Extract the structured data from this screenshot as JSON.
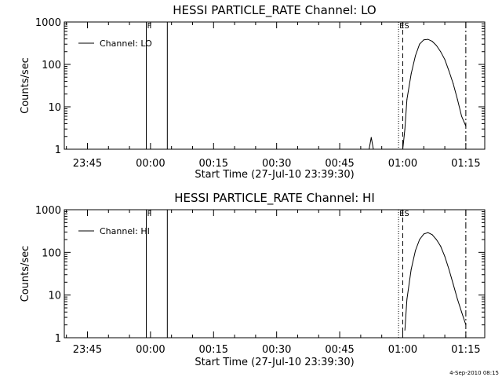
{
  "chart_data": [
    {
      "type": "line",
      "title": "HESSI PARTICLE_RATE Channel: LO",
      "xlabel": "Start Time (27-Jul-10 23:39:30)",
      "ylabel": "Counts/sec",
      "yscale": "log",
      "ylim": [
        1,
        1000
      ],
      "xlim_minutes_after_start": [
        0,
        100
      ],
      "x_tick_labels": [
        "23:45",
        "00:00",
        "00:15",
        "00:30",
        "00:45",
        "01:00",
        "01:15"
      ],
      "y_tick_labels": [
        "1",
        "10",
        "100",
        "1000"
      ],
      "legend": "top-left",
      "series": [
        {
          "name": "Channel: LO",
          "x": [
            "00:52",
            "00:52.5",
            "00:53",
            "01:00",
            "01:00.5",
            "01:01",
            "01:02",
            "01:03",
            "01:04",
            "01:05",
            "01:06",
            "01:07",
            "01:08",
            "01:09",
            "01:10",
            "01:11",
            "01:12",
            "01:13",
            "01:14",
            "01:15"
          ],
          "values": [
            1.0,
            1.9,
            1.0,
            1.0,
            3.0,
            15,
            60,
            160,
            300,
            380,
            390,
            350,
            280,
            200,
            130,
            70,
            35,
            15,
            6,
            3.5
          ]
        }
      ],
      "markers": [
        {
          "label": "F",
          "time": "23:59"
        },
        {
          "label": "",
          "time": "00:04"
        },
        {
          "label": "ES",
          "time": "00:59"
        },
        {
          "label": "",
          "time": "01:00"
        },
        {
          "label": "",
          "time": "01:15"
        }
      ]
    },
    {
      "type": "line",
      "title": "HESSI PARTICLE_RATE Channel: HI",
      "xlabel": "Start Time (27-Jul-10 23:39:30)",
      "ylabel": "Counts/sec",
      "yscale": "log",
      "ylim": [
        1,
        1000
      ],
      "xlim_minutes_after_start": [
        0,
        100
      ],
      "x_tick_labels": [
        "23:45",
        "00:00",
        "00:15",
        "00:30",
        "00:45",
        "01:00",
        "01:15"
      ],
      "y_tick_labels": [
        "1",
        "10",
        "100",
        "1000"
      ],
      "legend": "top-left",
      "series": [
        {
          "name": "Channel: HI",
          "x": [
            "01:00.5",
            "01:01",
            "01:02",
            "01:03",
            "01:04",
            "01:05",
            "01:06",
            "01:07",
            "01:08",
            "01:09",
            "01:10",
            "01:11",
            "01:12",
            "01:13",
            "01:14",
            "01:15"
          ],
          "values": [
            1.5,
            8,
            40,
            110,
            200,
            270,
            290,
            260,
            200,
            140,
            80,
            40,
            18,
            8,
            4,
            2
          ]
        }
      ],
      "markers": [
        {
          "label": "F",
          "time": "23:59"
        },
        {
          "label": "",
          "time": "00:04"
        },
        {
          "label": "ES",
          "time": "00:59"
        },
        {
          "label": "",
          "time": "01:00"
        },
        {
          "label": "",
          "time": "01:15"
        }
      ]
    }
  ],
  "timestamp": "4-Sep-2010 08:15"
}
